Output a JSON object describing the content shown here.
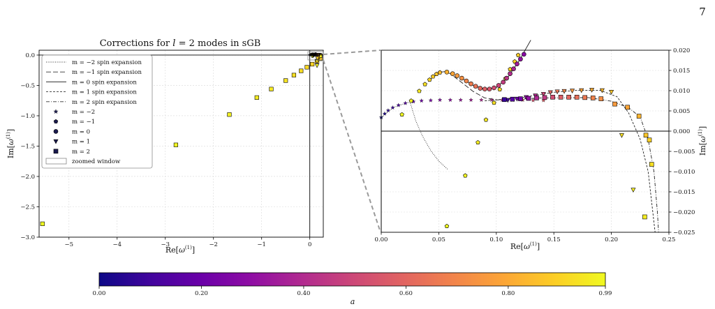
{
  "page_number": "7",
  "colorbar": {
    "label": "a",
    "ticks": [
      "0.00",
      "0.20",
      "0.40",
      "0.60",
      "0.80",
      "0.99"
    ],
    "tick_values": [
      0.0,
      0.2,
      0.4,
      0.6,
      0.8,
      0.99
    ],
    "colormap": "plasma",
    "range": [
      0.0,
      0.99
    ]
  },
  "chart_data": [
    {
      "type": "scatter",
      "title": "Corrections for l = 2 modes in sGB",
      "xlabel": "Re[ω⁽¹⁾]",
      "ylabel": "Im[ω⁽¹⁾]",
      "xlim": [
        -5.62,
        0.28
      ],
      "ylim": [
        -3.0,
        0.08
      ],
      "x_ticks": [
        -5,
        -4,
        -3,
        -2,
        -1,
        0
      ],
      "x_tick_labels": [
        "−5",
        "−4",
        "−3",
        "−2",
        "−1",
        "0"
      ],
      "y_ticks": [
        0.0,
        -0.5,
        -1.0,
        -1.5,
        -2.0,
        -2.5,
        -3.0
      ],
      "y_tick_labels": [
        "0.0",
        "−0.5",
        "−1.0",
        "−1.5",
        "−2.0",
        "−2.5",
        "−3.0"
      ],
      "grid": true,
      "legend_position": "upper-left",
      "legend": [
        {
          "label": "m = −2 spin expansion",
          "style": "dotted"
        },
        {
          "label": "m = −1 spin expansion",
          "style": "long-dash"
        },
        {
          "label": "m = 0 spin expansion",
          "style": "solid"
        },
        {
          "label": "m = 1 spin expansion",
          "style": "dashed"
        },
        {
          "label": "m = 2 spin expansion",
          "style": "dash-dot"
        },
        {
          "label": "m = −2",
          "marker": "star"
        },
        {
          "label": "m = −1",
          "marker": "pentagon"
        },
        {
          "label": "m = 0",
          "marker": "circle"
        },
        {
          "label": "m = 1",
          "marker": "triangle-down"
        },
        {
          "label": "m = 2",
          "marker": "square"
        },
        {
          "label": "zoomed window",
          "marker": "rectangle"
        }
      ],
      "series": [
        {
          "name": "m = 2",
          "marker": "square",
          "points": [
            {
              "x": -5.55,
              "y": -2.78,
              "a": 0.99
            },
            {
              "x": -2.78,
              "y": -1.48,
              "a": 0.98
            },
            {
              "x": -1.67,
              "y": -0.98,
              "a": 0.97
            },
            {
              "x": -1.1,
              "y": -0.7,
              "a": 0.96
            },
            {
              "x": -0.8,
              "y": -0.56,
              "a": 0.95
            },
            {
              "x": -0.5,
              "y": -0.42,
              "a": 0.94
            },
            {
              "x": -0.33,
              "y": -0.33,
              "a": 0.93
            },
            {
              "x": -0.18,
              "y": -0.26,
              "a": 0.92
            },
            {
              "x": -0.06,
              "y": -0.2,
              "a": 0.91
            },
            {
              "x": 0.05,
              "y": -0.15,
              "a": 0.9
            },
            {
              "x": 0.15,
              "y": -0.1,
              "a": 0.89
            },
            {
              "x": 0.22,
              "y": -0.06,
              "a": 0.87
            }
          ]
        },
        {
          "name": "m = 1",
          "marker": "triangle-down",
          "points": [
            {
              "x": 0.15,
              "y": -0.17,
              "a": 0.97
            },
            {
              "x": 0.15,
              "y": -0.1,
              "a": 0.94
            },
            {
              "x": 0.16,
              "y": -0.05,
              "a": 0.9
            },
            {
              "x": 0.2,
              "y": -0.03,
              "a": 0.85
            }
          ]
        }
      ]
    },
    {
      "type": "scatter",
      "title": "",
      "xlabel": "Re[ω⁽¹⁾]",
      "ylabel": "Im[ω⁽¹⁾]",
      "xlim": [
        0.0,
        0.25
      ],
      "ylim": [
        -0.025,
        0.02
      ],
      "x_ticks": [
        0.0,
        0.05,
        0.1,
        0.15,
        0.2,
        0.25
      ],
      "x_tick_labels": [
        "0.00",
        "0.05",
        "0.10",
        "0.15",
        "0.20",
        "0.25"
      ],
      "y_ticks": [
        0.02,
        0.015,
        0.01,
        0.005,
        0.0,
        -0.005,
        -0.01,
        -0.015,
        -0.02,
        -0.025
      ],
      "y_tick_labels": [
        "0.020",
        "0.015",
        "0.010",
        "0.005",
        "0.000",
        "−0.005",
        "−0.010",
        "−0.015",
        "−0.020",
        "−0.025"
      ],
      "grid": true,
      "series": [
        {
          "name": "m = −2",
          "marker": "star",
          "points": [
            {
              "x": 0.0,
              "y": 0.0034,
              "a": 0.0
            },
            {
              "x": 0.003,
              "y": 0.0043,
              "a": 0.03
            },
            {
              "x": 0.006,
              "y": 0.0051,
              "a": 0.06
            },
            {
              "x": 0.01,
              "y": 0.0058,
              "a": 0.09
            },
            {
              "x": 0.015,
              "y": 0.0064,
              "a": 0.12
            },
            {
              "x": 0.021,
              "y": 0.0069,
              "a": 0.15
            },
            {
              "x": 0.028,
              "y": 0.0073,
              "a": 0.18
            },
            {
              "x": 0.035,
              "y": 0.0075,
              "a": 0.21
            },
            {
              "x": 0.043,
              "y": 0.0076,
              "a": 0.24
            },
            {
              "x": 0.051,
              "y": 0.0077,
              "a": 0.27
            },
            {
              "x": 0.06,
              "y": 0.0077,
              "a": 0.3
            },
            {
              "x": 0.069,
              "y": 0.0077,
              "a": 0.33
            },
            {
              "x": 0.078,
              "y": 0.0077,
              "a": 0.36
            },
            {
              "x": 0.087,
              "y": 0.0077,
              "a": 0.39
            },
            {
              "x": 0.096,
              "y": 0.0077,
              "a": 0.42
            },
            {
              "x": 0.105,
              "y": 0.0077,
              "a": 0.45
            },
            {
              "x": 0.114,
              "y": 0.0077,
              "a": 0.48
            },
            {
              "x": 0.123,
              "y": 0.0077,
              "a": 0.51
            },
            {
              "x": 0.132,
              "y": 0.0076,
              "a": 0.54
            },
            {
              "x": 0.141,
              "y": 0.0076,
              "a": 0.57
            }
          ]
        },
        {
          "name": "m = −1",
          "marker": "pentagon",
          "points": [
            {
              "x": 0.018,
              "y": 0.0041,
              "a": 0.99
            },
            {
              "x": 0.026,
              "y": 0.0075,
              "a": 0.97
            },
            {
              "x": 0.033,
              "y": 0.0099,
              "a": 0.95
            },
            {
              "x": 0.038,
              "y": 0.0116,
              "a": 0.93
            },
            {
              "x": 0.042,
              "y": 0.0127,
              "a": 0.91
            },
            {
              "x": 0.045,
              "y": 0.0135,
              "a": 0.89
            },
            {
              "x": 0.048,
              "y": 0.0141,
              "a": 0.87
            },
            {
              "x": 0.051,
              "y": 0.0145,
              "a": 0.85
            },
            {
              "x": 0.057,
              "y": -0.0235,
              "a": 0.99
            },
            {
              "x": 0.073,
              "y": -0.011,
              "a": 0.98
            },
            {
              "x": 0.084,
              "y": -0.0028,
              "a": 0.96
            },
            {
              "x": 0.091,
              "y": 0.0028,
              "a": 0.95
            },
            {
              "x": 0.098,
              "y": 0.007,
              "a": 0.93
            },
            {
              "x": 0.103,
              "y": 0.0103,
              "a": 0.92
            },
            {
              "x": 0.108,
              "y": 0.013,
              "a": 0.91
            },
            {
              "x": 0.112,
              "y": 0.0153,
              "a": 0.9
            },
            {
              "x": 0.116,
              "y": 0.0172,
              "a": 0.89
            },
            {
              "x": 0.119,
              "y": 0.0188,
              "a": 0.88
            }
          ]
        },
        {
          "name": "m = 0",
          "marker": "circle",
          "points": [
            {
              "x": 0.057,
              "y": 0.0146,
              "a": 0.82
            },
            {
              "x": 0.062,
              "y": 0.0142,
              "a": 0.79
            },
            {
              "x": 0.066,
              "y": 0.0137,
              "a": 0.76
            },
            {
              "x": 0.07,
              "y": 0.0131,
              "a": 0.73
            },
            {
              "x": 0.074,
              "y": 0.0124,
              "a": 0.7
            },
            {
              "x": 0.078,
              "y": 0.0117,
              "a": 0.67
            },
            {
              "x": 0.082,
              "y": 0.0111,
              "a": 0.64
            },
            {
              "x": 0.086,
              "y": 0.0106,
              "a": 0.61
            },
            {
              "x": 0.09,
              "y": 0.0104,
              "a": 0.58
            },
            {
              "x": 0.094,
              "y": 0.0104,
              "a": 0.55
            },
            {
              "x": 0.098,
              "y": 0.0107,
              "a": 0.52
            },
            {
              "x": 0.102,
              "y": 0.0113,
              "a": 0.49
            },
            {
              "x": 0.106,
              "y": 0.0121,
              "a": 0.46
            },
            {
              "x": 0.109,
              "y": 0.0131,
              "a": 0.43
            },
            {
              "x": 0.112,
              "y": 0.0142,
              "a": 0.4
            },
            {
              "x": 0.115,
              "y": 0.0154,
              "a": 0.37
            },
            {
              "x": 0.118,
              "y": 0.0166,
              "a": 0.34
            },
            {
              "x": 0.121,
              "y": 0.0178,
              "a": 0.31
            },
            {
              "x": 0.124,
              "y": 0.019,
              "a": 0.28
            }
          ]
        },
        {
          "name": "m = 1",
          "marker": "triangle-down",
          "points": [
            {
              "x": 0.11,
              "y": 0.0077,
              "a": 0.1
            },
            {
              "x": 0.118,
              "y": 0.008,
              "a": 0.2
            },
            {
              "x": 0.126,
              "y": 0.0084,
              "a": 0.3
            },
            {
              "x": 0.134,
              "y": 0.0088,
              "a": 0.4
            },
            {
              "x": 0.141,
              "y": 0.0092,
              "a": 0.5
            },
            {
              "x": 0.147,
              "y": 0.0096,
              "a": 0.6
            },
            {
              "x": 0.153,
              "y": 0.0098,
              "a": 0.65
            },
            {
              "x": 0.159,
              "y": 0.0099,
              "a": 0.7
            },
            {
              "x": 0.166,
              "y": 0.01,
              "a": 0.75
            },
            {
              "x": 0.174,
              "y": 0.0101,
              "a": 0.78
            },
            {
              "x": 0.183,
              "y": 0.0102,
              "a": 0.81
            },
            {
              "x": 0.192,
              "y": 0.0101,
              "a": 0.84
            },
            {
              "x": 0.2,
              "y": 0.0097,
              "a": 0.87
            },
            {
              "x": 0.209,
              "y": -0.001,
              "a": 0.93
            },
            {
              "x": 0.219,
              "y": -0.0145,
              "a": 0.96
            }
          ]
        },
        {
          "name": "m = 2",
          "marker": "square",
          "points": [
            {
              "x": 0.107,
              "y": 0.0078,
              "a": 0.08
            },
            {
              "x": 0.114,
              "y": 0.0079,
              "a": 0.15
            },
            {
              "x": 0.121,
              "y": 0.008,
              "a": 0.22
            },
            {
              "x": 0.128,
              "y": 0.0081,
              "a": 0.3
            },
            {
              "x": 0.135,
              "y": 0.0082,
              "a": 0.38
            },
            {
              "x": 0.142,
              "y": 0.0083,
              "a": 0.45
            },
            {
              "x": 0.149,
              "y": 0.0084,
              "a": 0.52
            },
            {
              "x": 0.156,
              "y": 0.0084,
              "a": 0.57
            },
            {
              "x": 0.163,
              "y": 0.0084,
              "a": 0.6
            },
            {
              "x": 0.17,
              "y": 0.0084,
              "a": 0.63
            },
            {
              "x": 0.177,
              "y": 0.0083,
              "a": 0.66
            },
            {
              "x": 0.184,
              "y": 0.0082,
              "a": 0.69
            },
            {
              "x": 0.191,
              "y": 0.008,
              "a": 0.72
            },
            {
              "x": 0.203,
              "y": 0.0067,
              "a": 0.76
            },
            {
              "x": 0.214,
              "y": 0.0059,
              "a": 0.79
            },
            {
              "x": 0.224,
              "y": 0.0037,
              "a": 0.83
            },
            {
              "x": 0.23,
              "y": -0.001,
              "a": 0.87
            },
            {
              "x": 0.233,
              "y": -0.0022,
              "a": 0.9
            },
            {
              "x": 0.235,
              "y": -0.0082,
              "a": 0.93
            },
            {
              "x": 0.229,
              "y": -0.0212,
              "a": 0.96
            }
          ]
        }
      ],
      "curves": [
        {
          "name": "m = −2 spin expansion",
          "style": "dotted",
          "points": [
            [
              0.0,
              0.0034
            ],
            [
              0.01,
              0.0058
            ],
            [
              0.02,
              0.0068
            ],
            [
              0.025,
              0.0072
            ],
            [
              0.03,
              0.0026
            ],
            [
              0.036,
              -0.0013
            ],
            [
              0.043,
              -0.0048
            ],
            [
              0.05,
              -0.0074
            ],
            [
              0.058,
              -0.0095
            ]
          ]
        },
        {
          "name": "m = −1 spin expansion",
          "style": "long-dash",
          "points": [
            [
              0.042,
              0.0127
            ],
            [
              0.05,
              0.0145
            ],
            [
              0.055,
              0.0147
            ],
            [
              0.06,
              0.0142
            ],
            [
              0.07,
              0.012
            ],
            [
              0.08,
              0.0098
            ],
            [
              0.09,
              0.0082
            ],
            [
              0.1,
              0.0078
            ]
          ]
        },
        {
          "name": "m = 0 spin expansion",
          "style": "solid",
          "points": [
            [
              0.07,
              0.0131
            ],
            [
              0.08,
              0.0113
            ],
            [
              0.09,
              0.0104
            ],
            [
              0.1,
              0.0108
            ],
            [
              0.11,
              0.0133
            ],
            [
              0.12,
              0.0175
            ],
            [
              0.13,
              0.0225
            ]
          ]
        },
        {
          "name": "m = 1 spin expansion",
          "style": "dashed",
          "points": [
            [
              0.09,
              0.0075
            ],
            [
              0.12,
              0.0082
            ],
            [
              0.15,
              0.0096
            ],
            [
              0.17,
              0.0101
            ],
            [
              0.19,
              0.0101
            ],
            [
              0.205,
              0.0085
            ],
            [
              0.215,
              0.0045
            ],
            [
              0.225,
              -0.002
            ],
            [
              0.232,
              -0.01
            ],
            [
              0.236,
              -0.02
            ],
            [
              0.238,
              -0.025
            ]
          ]
        },
        {
          "name": "m = 2 spin expansion",
          "style": "dash-dot",
          "points": [
            [
              0.1,
              0.0077
            ],
            [
              0.14,
              0.0082
            ],
            [
              0.18,
              0.0083
            ],
            [
              0.2,
              0.0074
            ],
            [
              0.215,
              0.0058
            ],
            [
              0.225,
              0.0035
            ],
            [
              0.232,
              -0.002
            ],
            [
              0.237,
              -0.01
            ],
            [
              0.24,
              -0.02
            ],
            [
              0.241,
              -0.025
            ]
          ]
        }
      ]
    }
  ]
}
